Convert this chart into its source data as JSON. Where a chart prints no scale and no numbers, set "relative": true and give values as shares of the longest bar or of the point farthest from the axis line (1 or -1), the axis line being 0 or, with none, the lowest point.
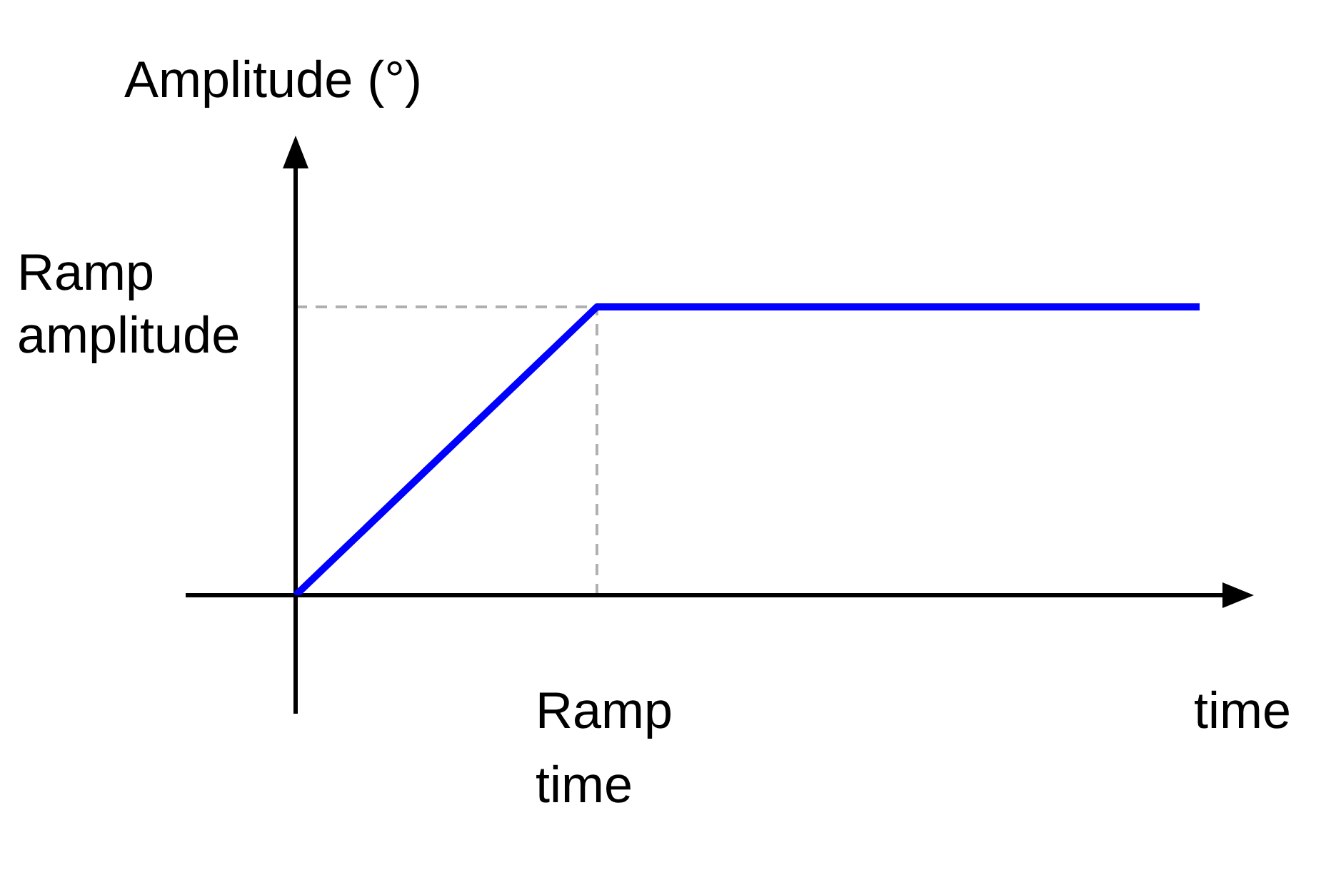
{
  "chart_data": {
    "type": "line",
    "relative": true,
    "categories": [
      null,
      null,
      null,
      null
    ],
    "series": [
      {
        "color": "#0000ff",
        "values": [
          0,
          1,
          1,
          1
        ]
      }
    ],
    "ylabel": "Amplitude (°)",
    "xlabel": "time",
    "ref_lines": [
      {
        "axis": "y",
        "value": 1,
        "label": "Ramp amplitude",
        "color": "#b0b0b0",
        "line_style": "dashed"
      }
    ],
    "annotations": [
      "Ramp time"
    ],
    "grid": false,
    "legend": false,
    "marker": "none",
    "line_style": "solid"
  }
}
